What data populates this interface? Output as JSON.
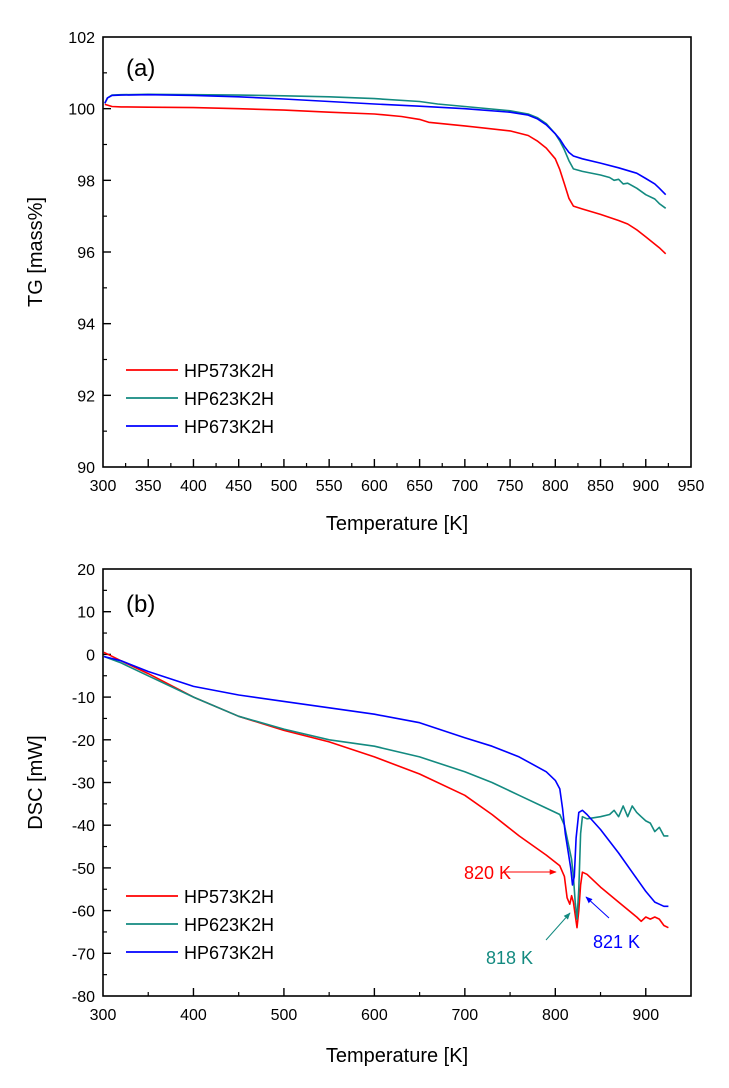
{
  "colors": {
    "HP573K2H": "#ff0000",
    "HP623K2H": "#138a80",
    "HP673K2H": "#0000ff",
    "axis": "#000000"
  },
  "chart_data": [
    {
      "id": "tg",
      "type": "line",
      "panel_label": "(a)",
      "title": "",
      "xlabel": "Temperature [K]",
      "ylabel": "TG [mass%]",
      "xlim": [
        300,
        950
      ],
      "ylim": [
        90,
        102
      ],
      "xticks": [
        300,
        350,
        400,
        450,
        500,
        550,
        600,
        650,
        700,
        750,
        800,
        850,
        900,
        950
      ],
      "xtick_labels": [
        "300",
        "350",
        "400",
        "450",
        "500",
        "550",
        "600",
        "650",
        "700",
        "750",
        "800",
        "850",
        "900",
        "950"
      ],
      "yticks": [
        90,
        92,
        94,
        96,
        98,
        100,
        102
      ],
      "ytick_labels": [
        "90",
        "92",
        "94",
        "96",
        "98",
        "100",
        "102"
      ],
      "grid": false,
      "legend": {
        "placement": "bottom-left",
        "entries": [
          "HP573K2H",
          "HP623K2H",
          "HP673K2H"
        ]
      },
      "series": [
        {
          "name": "HP573K2H",
          "x": [
            302,
            305,
            310,
            320,
            350,
            400,
            450,
            500,
            550,
            600,
            630,
            650,
            660,
            700,
            750,
            770,
            780,
            790,
            800,
            805,
            810,
            815,
            820,
            830,
            850,
            870,
            880,
            890,
            900,
            910,
            915,
            922
          ],
          "y": [
            100.12,
            100.1,
            100.06,
            100.05,
            100.04,
            100.03,
            100.0,
            99.96,
            99.9,
            99.85,
            99.78,
            99.7,
            99.62,
            99.52,
            99.38,
            99.25,
            99.1,
            98.9,
            98.6,
            98.3,
            97.9,
            97.5,
            97.28,
            97.2,
            97.05,
            96.88,
            96.78,
            96.62,
            96.42,
            96.22,
            96.12,
            95.95
          ]
        },
        {
          "name": "HP623K2H",
          "x": [
            302,
            305,
            310,
            320,
            350,
            400,
            450,
            500,
            550,
            600,
            650,
            670,
            700,
            750,
            770,
            780,
            790,
            800,
            805,
            810,
            815,
            820,
            830,
            850,
            860,
            865,
            870,
            875,
            880,
            890,
            900,
            910,
            915,
            922
          ],
          "y": [
            100.15,
            100.3,
            100.38,
            100.39,
            100.4,
            100.39,
            100.38,
            100.36,
            100.33,
            100.28,
            100.2,
            100.13,
            100.06,
            99.94,
            99.85,
            99.75,
            99.58,
            99.3,
            99.1,
            98.85,
            98.55,
            98.32,
            98.25,
            98.15,
            98.08,
            98.0,
            98.03,
            97.9,
            97.92,
            97.78,
            97.6,
            97.48,
            97.35,
            97.22
          ]
        },
        {
          "name": "HP673K2H",
          "x": [
            302,
            305,
            310,
            320,
            350,
            400,
            450,
            500,
            550,
            600,
            650,
            700,
            750,
            770,
            780,
            790,
            800,
            805,
            810,
            815,
            820,
            830,
            850,
            870,
            890,
            900,
            910,
            915,
            922
          ],
          "y": [
            100.15,
            100.3,
            100.37,
            100.38,
            100.39,
            100.37,
            100.33,
            100.27,
            100.2,
            100.13,
            100.07,
            100.0,
            99.9,
            99.82,
            99.72,
            99.55,
            99.3,
            99.15,
            98.95,
            98.78,
            98.68,
            98.6,
            98.48,
            98.35,
            98.2,
            98.05,
            97.9,
            97.78,
            97.6
          ]
        }
      ]
    },
    {
      "id": "dsc",
      "type": "line",
      "panel_label": "(b)",
      "title": "",
      "xlabel": "Temperature [K]",
      "ylabel": "DSC [mW]",
      "xlim": [
        300,
        950
      ],
      "ylim": [
        -80,
        20
      ],
      "xticks": [
        300,
        400,
        500,
        600,
        700,
        800,
        900
      ],
      "xtick_labels": [
        "300",
        "400",
        "500",
        "600",
        "700",
        "800",
        "900"
      ],
      "yticks": [
        -80,
        -70,
        -60,
        -50,
        -40,
        -30,
        -20,
        -10,
        0,
        10,
        20
      ],
      "ytick_labels": [
        "-80",
        "-70",
        "-60",
        "-50",
        "-40",
        "-30",
        "-20",
        "-10",
        "0",
        "10",
        "20"
      ],
      "grid": false,
      "legend": {
        "placement": "bottom-left",
        "entries": [
          "HP573K2H",
          "HP623K2H",
          "HP673K2H"
        ]
      },
      "series": [
        {
          "name": "HP573K2H",
          "x": [
            301,
            320,
            350,
            400,
            450,
            500,
            550,
            600,
            650,
            700,
            730,
            760,
            790,
            805,
            810,
            813,
            816,
            818,
            820,
            822,
            824,
            826,
            828,
            830,
            835,
            850,
            870,
            890,
            895,
            900,
            905,
            910,
            915,
            920,
            925
          ],
          "y": [
            0.5,
            -1.5,
            -4.5,
            -10.0,
            -14.5,
            -17.8,
            -20.5,
            -24.0,
            -28.0,
            -33.0,
            -37.5,
            -42.5,
            -47.0,
            -49.5,
            -52.0,
            -57.0,
            -58.5,
            -56.5,
            -58.0,
            -61.0,
            -64.0,
            -60.0,
            -54.0,
            -51.0,
            -51.5,
            -54.5,
            -58.0,
            -61.5,
            -62.5,
            -61.5,
            -62.0,
            -61.5,
            -62.0,
            -63.5,
            -64.0
          ]
        },
        {
          "name": "HP623K2H",
          "x": [
            301,
            320,
            350,
            400,
            450,
            500,
            550,
            600,
            650,
            700,
            730,
            760,
            790,
            805,
            810,
            815,
            818,
            820,
            822,
            824,
            826,
            828,
            830,
            835,
            850,
            860,
            865,
            870,
            875,
            880,
            885,
            890,
            895,
            900,
            905,
            910,
            915,
            920,
            925
          ],
          "y": [
            -0.5,
            -2.0,
            -5.0,
            -10.0,
            -14.5,
            -17.5,
            -20.0,
            -21.5,
            -24.0,
            -27.5,
            -30.0,
            -33.0,
            -36.0,
            -37.5,
            -40.0,
            -45.0,
            -48.0,
            -52.0,
            -58.0,
            -62.0,
            -55.0,
            -42.0,
            -38.0,
            -38.5,
            -38.0,
            -37.5,
            -36.5,
            -38.0,
            -35.5,
            -38.0,
            -35.5,
            -37.0,
            -38.0,
            -39.0,
            -39.5,
            -41.5,
            -40.5,
            -42.5,
            -42.5
          ]
        },
        {
          "name": "HP673K2H",
          "x": [
            301,
            320,
            350,
            400,
            450,
            500,
            550,
            600,
            650,
            700,
            730,
            760,
            790,
            800,
            805,
            808,
            811,
            814,
            817,
            819,
            821,
            823,
            826,
            830,
            835,
            850,
            870,
            890,
            900,
            910,
            915,
            920,
            925
          ],
          "y": [
            -0.5,
            -1.5,
            -4.0,
            -7.5,
            -9.5,
            -11.0,
            -12.5,
            -14.0,
            -16.0,
            -19.5,
            -21.5,
            -24.0,
            -27.5,
            -29.5,
            -31.5,
            -36.0,
            -42.0,
            -46.0,
            -50.0,
            -54.0,
            -52.0,
            -43.0,
            -37.0,
            -36.5,
            -37.5,
            -41.0,
            -46.5,
            -52.5,
            -55.5,
            -58.0,
            -58.5,
            -59.0,
            -59.0
          ]
        }
      ],
      "annotations": [
        {
          "text": "820 K",
          "series": "HP573K2H",
          "x": 820
        },
        {
          "text": "818 K",
          "series": "HP623K2H",
          "x": 818
        },
        {
          "text": "821 K",
          "series": "HP673K2H",
          "x": 821
        }
      ]
    }
  ]
}
